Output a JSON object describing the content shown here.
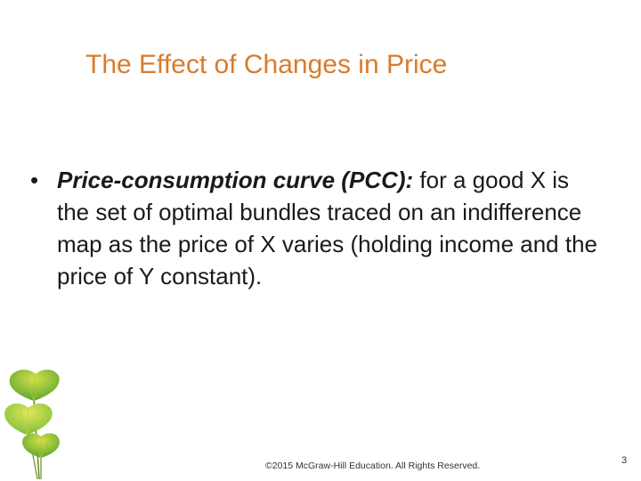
{
  "slide": {
    "title": "The Effect of Changes in Price",
    "bullet": {
      "term": "Price-consumption curve (PCC):",
      "text": " for a good X is the set of optimal bundles traced on an indifference map as the price of X varies (holding income and the price of Y constant)."
    },
    "footer": "©2015 McGraw-Hill Education. All Rights Reserved.",
    "page_number": "3"
  },
  "colors": {
    "title": "#d97b2b",
    "text": "#1a1a1a",
    "leaf_green": "#7cbf3a",
    "leaf_yellow": "#d6e04a"
  },
  "icons": {
    "decoration": "ginkgo-leaves-icon"
  }
}
